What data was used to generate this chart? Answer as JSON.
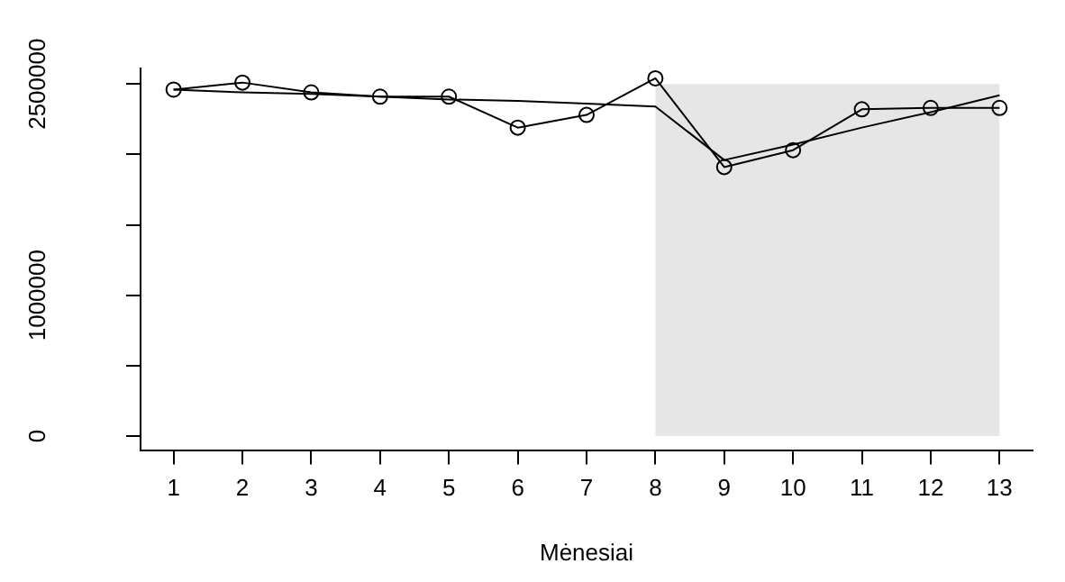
{
  "chart_data": {
    "type": "line",
    "xlabel": "Mėnesiai",
    "x": [
      1,
      2,
      3,
      4,
      5,
      6,
      7,
      8,
      9,
      10,
      11,
      12,
      13
    ],
    "xlim": [
      0.52,
      13.48
    ],
    "xticks": [
      1,
      2,
      3,
      4,
      5,
      6,
      7,
      8,
      9,
      10,
      11,
      12,
      13
    ],
    "ylim": [
      -100000,
      2610000
    ],
    "yticks": [
      0,
      {
        "value": 500000,
        "label": null
      },
      1000000,
      {
        "value": 1500000,
        "label": null
      },
      {
        "value": 2000000,
        "label": null
      },
      2500000
    ],
    "series": [
      {
        "color": "#000000",
        "marker": "circle",
        "values": [
          2460000,
          2510000,
          2440000,
          2410000,
          2410000,
          2190000,
          2280000,
          2540000,
          1910000,
          2030000,
          2320000,
          2330000,
          2330000
        ]
      },
      {
        "color": "#000000",
        "marker": "none",
        "values": [
          2460000,
          2440000,
          2430000,
          2410000,
          2390000,
          2380000,
          2360000,
          2340000,
          1960000,
          2070000,
          2190000,
          2300000,
          2420000
        ]
      }
    ],
    "bands": [
      {
        "axis": "x",
        "from": 8,
        "to": 13,
        "color": "#e6e6e6"
      }
    ],
    "grid": false,
    "legend": false
  }
}
